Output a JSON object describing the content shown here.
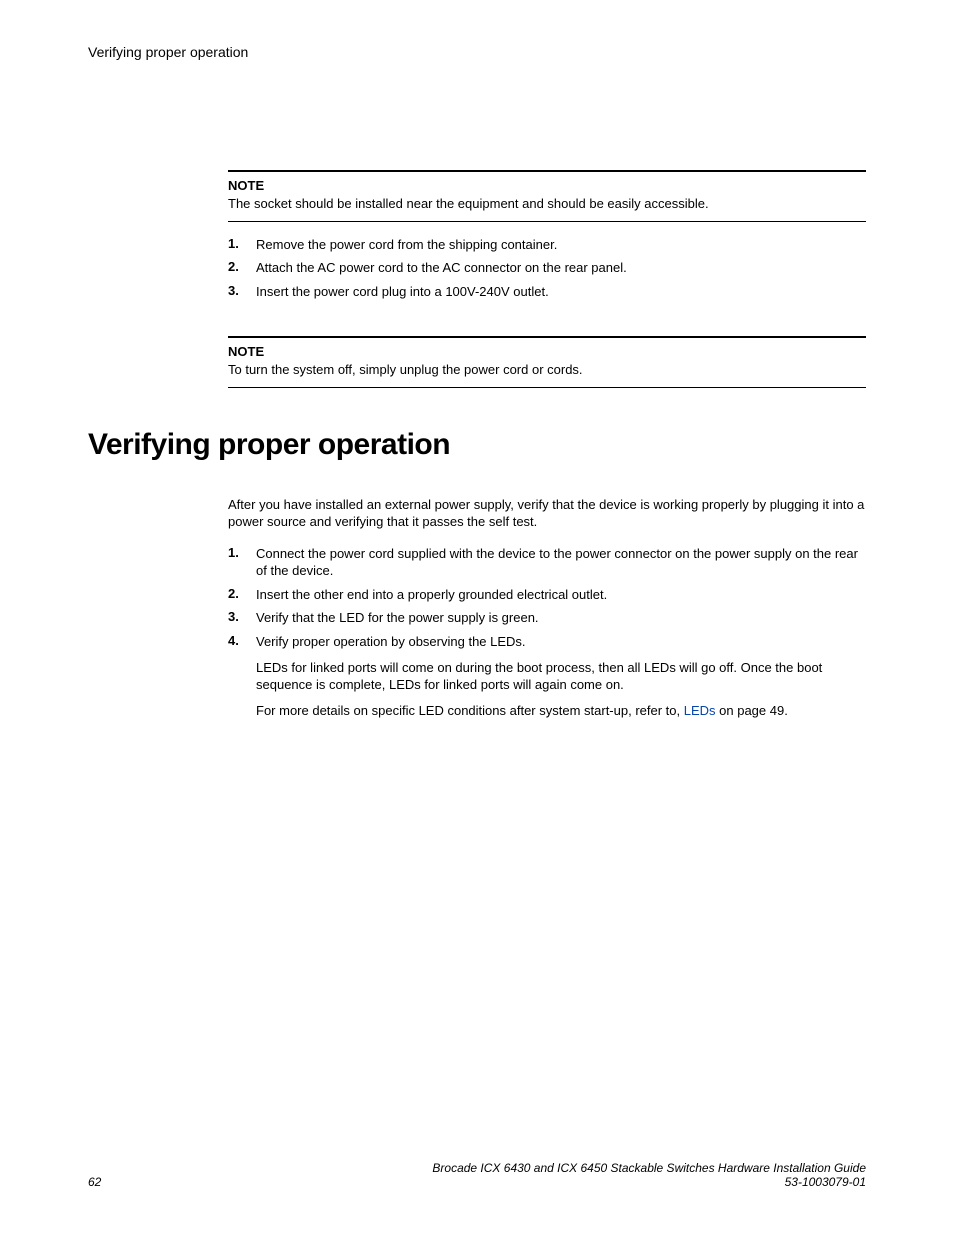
{
  "header": {
    "running": "Verifying proper operation"
  },
  "note1": {
    "label": "NOTE",
    "text": "The socket should be installed near the equipment and should be easily accessible."
  },
  "list1": {
    "items": [
      {
        "n": "1.",
        "t": "Remove the power cord from the shipping container."
      },
      {
        "n": "2.",
        "t": "Attach the AC power cord to the AC connector on the rear panel."
      },
      {
        "n": "3.",
        "t": "Insert the power cord plug into a 100V-240V outlet."
      }
    ]
  },
  "note2": {
    "label": "NOTE",
    "text": "To turn the system off, simply unplug the power cord or cords."
  },
  "section": {
    "title": "Verifying proper operation",
    "intro": "After you have installed an external power supply, verify that the device is working properly by plugging it into a power source and verifying that it passes the self test.",
    "items": [
      {
        "n": "1.",
        "t": "Connect the power cord supplied with the device to the power connector on the power supply on the rear of the device."
      },
      {
        "n": "2.",
        "t": "Insert the other end into a properly grounded electrical outlet."
      },
      {
        "n": "3.",
        "t": "Verify that the LED for the power supply is green."
      },
      {
        "n": "4.",
        "t": "Verify proper operation by observing the LEDs."
      }
    ],
    "sub1": "LEDs for linked ports will come on during the boot process, then all LEDs will go off. Once the boot sequence is complete, LEDs for linked ports will again come on.",
    "sub2_pre": "For more details on specific LED conditions after system start-up, refer to, ",
    "sub2_link": "LEDs",
    "sub2_post": " on page 49."
  },
  "footer": {
    "pagenum": "62",
    "title": "Brocade ICX 6430 and ICX 6450 Stackable Switches Hardware Installation Guide",
    "docnum": "53-1003079-01"
  }
}
